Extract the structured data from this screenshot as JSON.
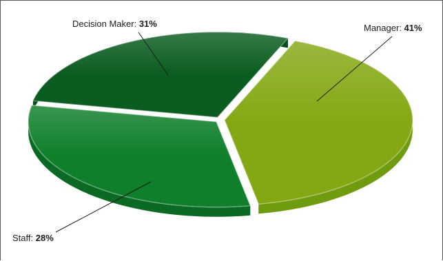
{
  "chart_data": {
    "type": "pie",
    "style": "3d",
    "categories": [
      "Manager",
      "Decision Maker",
      "Staff"
    ],
    "values": [
      41,
      31,
      28
    ],
    "labels": [
      {
        "name": "Manager",
        "value_text": "41%"
      },
      {
        "name": "Decision Maker",
        "value_text": "31%"
      },
      {
        "name": "Staff",
        "value_text": "28%"
      }
    ],
    "colors": [
      "#84a814",
      "#0f7f2a",
      "#0b5c21"
    ],
    "side_colors": [
      "#6f9b0f",
      "#0a6a23",
      "#074d1b"
    ],
    "legend": "none"
  }
}
